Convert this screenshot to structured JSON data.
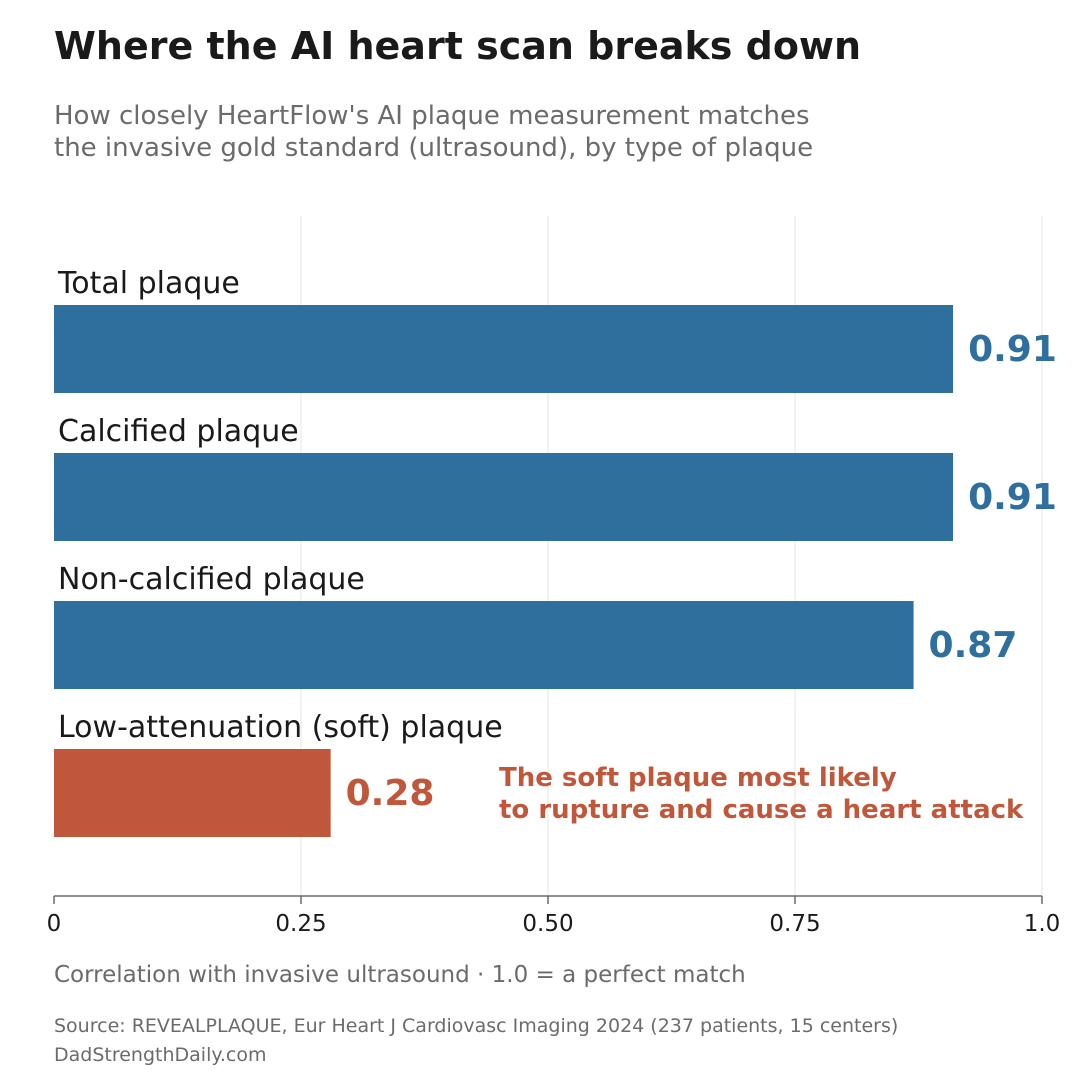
{
  "title": "Where the AI heart scan breaks down",
  "subtitle": [
    "How closely HeartFlow's AI plaque measurement matches",
    "the invasive gold standard (ultrasound), by type of plaque"
  ],
  "colors": {
    "primary": "#2e6f9e",
    "highlight": "#c0573a",
    "text": "#1a1a1a",
    "muted": "#6b6b6b",
    "grid": "#e6e6e6"
  },
  "chart_data": {
    "type": "bar",
    "orientation": "horizontal",
    "categories": [
      "Total plaque",
      "Calcified plaque",
      "Non-calcified plaque",
      "Low-attenuation (soft) plaque"
    ],
    "values": [
      0.91,
      0.91,
      0.87,
      0.28
    ],
    "value_labels": [
      "0.91",
      "0.91",
      "0.87",
      "0.28"
    ],
    "highlighted_category": "Low-attenuation (soft) plaque",
    "xlim": [
      0,
      1.0
    ],
    "xticks": [
      0,
      0.25,
      0.5,
      0.75,
      1.0
    ],
    "xtick_labels": [
      "0",
      "0.25",
      "0.50",
      "0.75",
      "1.0"
    ],
    "grid": "vertical",
    "annotation": [
      "The soft plaque most likely",
      "to rupture and cause a heart attack"
    ]
  },
  "xlabel": "Correlation with invasive ultrasound  ·  1.0 = a perfect match",
  "source": [
    "Source: REVEALPLAQUE, Eur Heart J Cardiovasc Imaging 2024 (237 patients, 15 centers)",
    "DadStrengthDaily.com"
  ]
}
